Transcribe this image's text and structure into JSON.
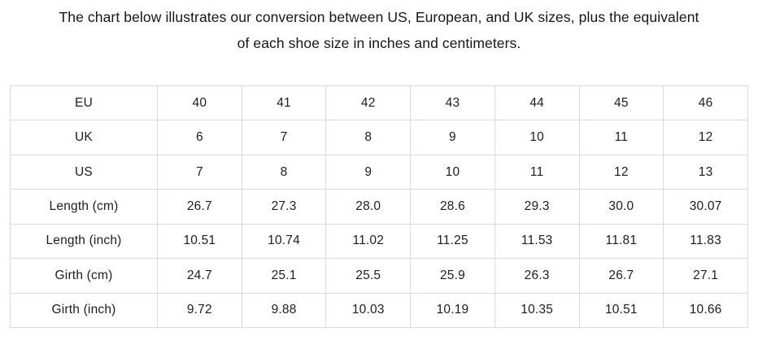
{
  "header": {
    "title_line1": "The chart below illustrates our conversion between US, European, and UK sizes, plus the equivalent",
    "title_line2": "of each shoe size in inches and centimeters."
  },
  "table": {
    "rows": [
      {
        "label": "EU",
        "values": [
          "40",
          "41",
          "42",
          "43",
          "44",
          "45",
          "46"
        ]
      },
      {
        "label": "UK",
        "values": [
          "6",
          "7",
          "8",
          "9",
          "10",
          "11",
          "12"
        ]
      },
      {
        "label": "US",
        "values": [
          "7",
          "8",
          "9",
          "10",
          "11",
          "12",
          "13"
        ]
      },
      {
        "label": "Length (cm)",
        "values": [
          "26.7",
          "27.3",
          "28.0",
          "28.6",
          "29.3",
          "30.0",
          "30.07"
        ]
      },
      {
        "label": "Length (inch)",
        "values": [
          "10.51",
          "10.74",
          "11.02",
          "11.25",
          "11.53",
          "11.81",
          "11.83"
        ]
      },
      {
        "label": "Girth (cm)",
        "values": [
          "24.7",
          "25.1",
          "25.5",
          "25.9",
          "26.3",
          "26.7",
          "27.1"
        ]
      },
      {
        "label": "Girth (inch)",
        "values": [
          "9.72",
          "9.88",
          "10.03",
          "10.19",
          "10.35",
          "10.51",
          "10.66"
        ]
      }
    ]
  },
  "chart_data": {
    "type": "table",
    "title": "Shoe size conversion chart",
    "row_labels": [
      "EU",
      "UK",
      "US",
      "Length (cm)",
      "Length (inch)",
      "Girth (cm)",
      "Girth (inch)"
    ],
    "series": [
      {
        "name": "EU",
        "values": [
          40,
          41,
          42,
          43,
          44,
          45,
          46
        ]
      },
      {
        "name": "UK",
        "values": [
          6,
          7,
          8,
          9,
          10,
          11,
          12
        ]
      },
      {
        "name": "US",
        "values": [
          7,
          8,
          9,
          10,
          11,
          12,
          13
        ]
      },
      {
        "name": "Length (cm)",
        "values": [
          26.7,
          27.3,
          28.0,
          28.6,
          29.3,
          30.0,
          30.07
        ]
      },
      {
        "name": "Length (inch)",
        "values": [
          10.51,
          10.74,
          11.02,
          11.25,
          11.53,
          11.81,
          11.83
        ]
      },
      {
        "name": "Girth (cm)",
        "values": [
          24.7,
          25.1,
          25.5,
          25.9,
          26.3,
          26.7,
          27.1
        ]
      },
      {
        "name": "Girth (inch)",
        "values": [
          9.72,
          9.88,
          10.03,
          10.19,
          10.35,
          10.51,
          10.66
        ]
      }
    ]
  },
  "colors": {
    "background": "#ffffff",
    "table_border": "#dadada",
    "text": "#1d1d1f"
  }
}
